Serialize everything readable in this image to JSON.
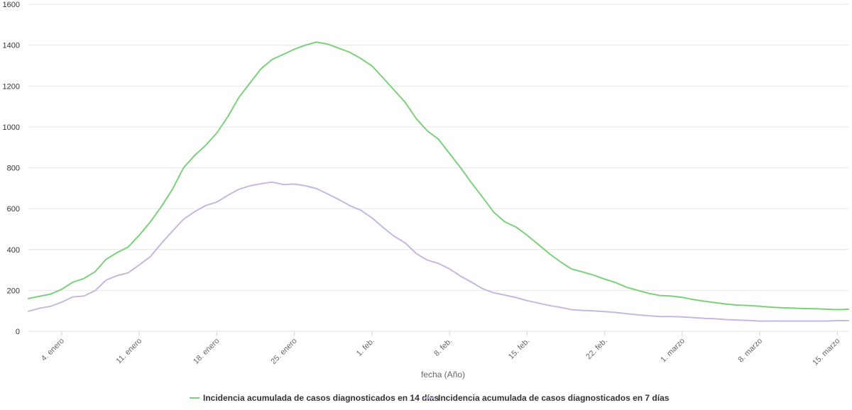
{
  "chart_data": {
    "type": "line",
    "title": "",
    "xlabel": "fecha (Año)",
    "ylabel": "",
    "ylim": [
      0,
      1600
    ],
    "y_ticks": [
      0,
      200,
      400,
      600,
      800,
      1000,
      1200,
      1400,
      1600
    ],
    "x_tick_labels": [
      "4. enero",
      "11. enero",
      "18. enero",
      "25. enero",
      "1. feb.",
      "8. feb.",
      "15. feb.",
      "22. feb.",
      "1. marzo",
      "8. marzo",
      "15. marzo"
    ],
    "x_tick_days": [
      3,
      10,
      17,
      24,
      31,
      38,
      45,
      52,
      59,
      66,
      73
    ],
    "x_start_label": "1. enero",
    "x_range_days": [
      0,
      74
    ],
    "grid": "horizontal",
    "legend_position": "bottom",
    "series": [
      {
        "name": "Incidencia acumulada de casos diagnosticados en 14 días",
        "color": "#7cd07c",
        "x": [
          0,
          2,
          3,
          4,
          5,
          6,
          7,
          8,
          9,
          10,
          11,
          12,
          13,
          14,
          15,
          16,
          17,
          18,
          19,
          20,
          21,
          22,
          23,
          24,
          25,
          26,
          27,
          28,
          29,
          30,
          31,
          32,
          33,
          34,
          35,
          36,
          37,
          38,
          39,
          40,
          41,
          42,
          43,
          44,
          45,
          46,
          47,
          48,
          49,
          50,
          51,
          52,
          53,
          54,
          55,
          56,
          57,
          58,
          59,
          60,
          61,
          62,
          63,
          64,
          65,
          66,
          67,
          68,
          69,
          70,
          71,
          72,
          73,
          74
        ],
        "values": [
          160,
          182,
          205,
          240,
          258,
          290,
          352,
          385,
          412,
          470,
          535,
          610,
          695,
          800,
          860,
          910,
          970,
          1050,
          1145,
          1215,
          1285,
          1330,
          1355,
          1380,
          1400,
          1415,
          1405,
          1385,
          1365,
          1335,
          1298,
          1240,
          1180,
          1120,
          1040,
          980,
          940,
          870,
          800,
          725,
          655,
          582,
          535,
          510,
          470,
          425,
          380,
          340,
          305,
          290,
          275,
          255,
          238,
          215,
          200,
          185,
          175,
          172,
          166,
          155,
          147,
          140,
          133,
          128,
          126,
          122,
          118,
          115,
          113,
          111,
          110,
          108,
          106,
          108
        ]
      },
      {
        "name": "Incidencia acumulada de casos diagnosticados en 7 días",
        "color": "#c8b6e2",
        "x": [
          0,
          1,
          2,
          3,
          4,
          5,
          6,
          7,
          8,
          9,
          10,
          11,
          12,
          13,
          14,
          15,
          16,
          17,
          18,
          19,
          20,
          21,
          22,
          23,
          24,
          25,
          26,
          27,
          28,
          29,
          30,
          31,
          32,
          33,
          34,
          35,
          36,
          37,
          38,
          39,
          40,
          41,
          42,
          43,
          44,
          45,
          46,
          47,
          48,
          49,
          50,
          51,
          52,
          53,
          54,
          55,
          56,
          57,
          58,
          59,
          60,
          61,
          62,
          63,
          64,
          65,
          66,
          67,
          68,
          69,
          70,
          71,
          72,
          73,
          74
        ],
        "values": [
          98,
          112,
          122,
          142,
          168,
          172,
          198,
          250,
          272,
          286,
          325,
          365,
          430,
          490,
          548,
          585,
          615,
          632,
          665,
          695,
          712,
          722,
          730,
          718,
          720,
          712,
          698,
          672,
          645,
          615,
          592,
          555,
          508,
          465,
          432,
          380,
          348,
          332,
          305,
          270,
          240,
          208,
          188,
          177,
          165,
          150,
          138,
          126,
          117,
          106,
          102,
          100,
          96,
          92,
          86,
          80,
          76,
          72,
          72,
          70,
          67,
          63,
          61,
          57,
          55,
          53,
          50,
          50,
          50,
          50,
          50,
          50,
          50,
          52,
          52
        ]
      }
    ]
  }
}
